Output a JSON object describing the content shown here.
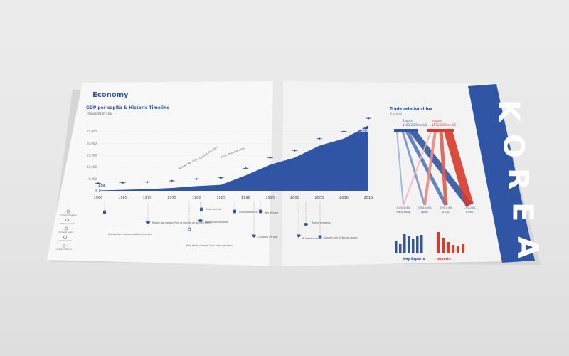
{
  "page": {
    "section_title": "Economy",
    "chart_title": "GDP per capita & Historic Timeline",
    "chart_unit": "Thousands of $US",
    "trade_title": "Trade relationships",
    "trade_unit": "% of total",
    "side_title": "KOREA",
    "exports_label": "Exports",
    "exports_value": "$183.2 Billion US",
    "imports_label": "Imports",
    "imports_value": "$172.9 Billion US",
    "key_exports_label": "Key Exports",
    "imports_bottom_label": "Imports",
    "trade_partners": [
      "Hong Kong",
      "Japan",
      "U.S.A.",
      "China"
    ],
    "trade_percents": [
      "4.5%  6.5%",
      "5.5%  4.4%",
      "10%  8.6%",
      "17%  24%"
    ],
    "start_value": "158",
    "end_value": "27,558",
    "legend": [
      "Foreign treaties",
      "Military event",
      "Political event",
      "Social event",
      "Independence"
    ],
    "events": [
      "General Park restores political freedom",
      "Martial law begins; Park re-elected for second term",
      "Park killed; General Chun takes the reins",
      "Chun elected",
      "Martial law declared",
      "Chun elected for 2nd",
      "Roh elected",
      "1. Korean UN bids",
      "N. Korean summit",
      "Rise of Syngman",
      "Summit with N. Korean leader"
    ],
    "curve_labels": [
      "Korean War ends",
      "Summit Olympics",
      "Asian financial crisis"
    ],
    "colors": {
      "blue": "#2f55a4",
      "red": "#d93a2b",
      "page": "#f7f7f7"
    }
  },
  "chart_data": {
    "type": "area",
    "title": "GDP per capita & Historic Timeline",
    "ylabel": "Thousands of $US",
    "x": [
      1960,
      1965,
      1970,
      1975,
      1980,
      1985,
      1990,
      1995,
      2000,
      2005,
      2010,
      2015
    ],
    "y": [
      158,
      400,
      700,
      1200,
      2000,
      2500,
      6500,
      11000,
      14000,
      19000,
      22000,
      27558
    ],
    "ylim": [
      0,
      30000
    ],
    "yticks": [
      0,
      5000,
      10000,
      15000,
      20000,
      25000
    ],
    "ytick_labels": [
      "0",
      "5,000",
      "10,000",
      "15,000",
      "20,000",
      "25,000"
    ],
    "xtick_labels": [
      "1960",
      "1965",
      "1970",
      "1975",
      "1980",
      "1985",
      "1990",
      "1995",
      "2000",
      "2005",
      "2010",
      "2015"
    ]
  }
}
